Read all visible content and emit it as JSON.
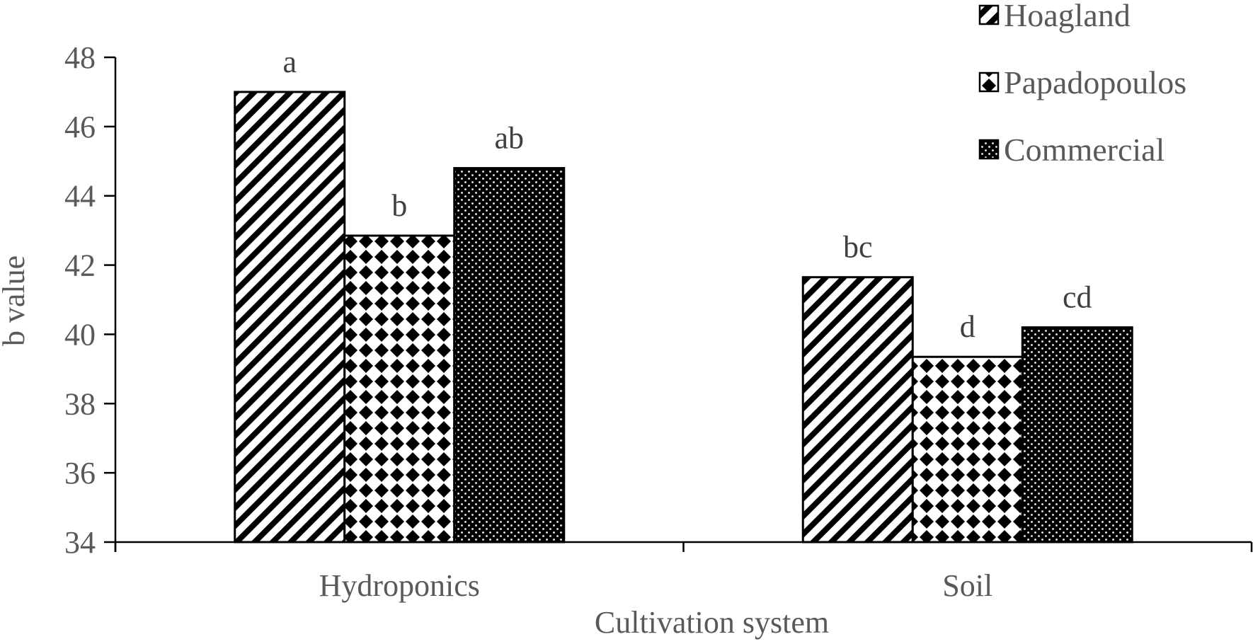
{
  "chart_data": {
    "type": "bar",
    "title": "",
    "xlabel": "Cultivation system",
    "ylabel": "b value",
    "categories": [
      "Hydroponics",
      "Soil"
    ],
    "ylim": [
      34,
      48
    ],
    "yticks": [
      34,
      36,
      38,
      40,
      42,
      44,
      46,
      48
    ],
    "grid": false,
    "legend_position": "top-right",
    "series": [
      {
        "name": "Hoagland",
        "values": [
          47.0,
          41.65
        ],
        "labels": [
          "a",
          "bc"
        ],
        "pattern": "diagonal-stripes"
      },
      {
        "name": "Papadopoulos",
        "values": [
          42.85,
          39.35
        ],
        "labels": [
          "b",
          "d"
        ],
        "pattern": "diamond-checker"
      },
      {
        "name": "Commercial",
        "values": [
          44.8,
          40.2
        ],
        "labels": [
          "ab",
          "cd"
        ],
        "pattern": "dotted-dark"
      }
    ],
    "colors": {
      "axis": "#000000",
      "text": "#595959",
      "bar_edge": "#000000"
    }
  }
}
